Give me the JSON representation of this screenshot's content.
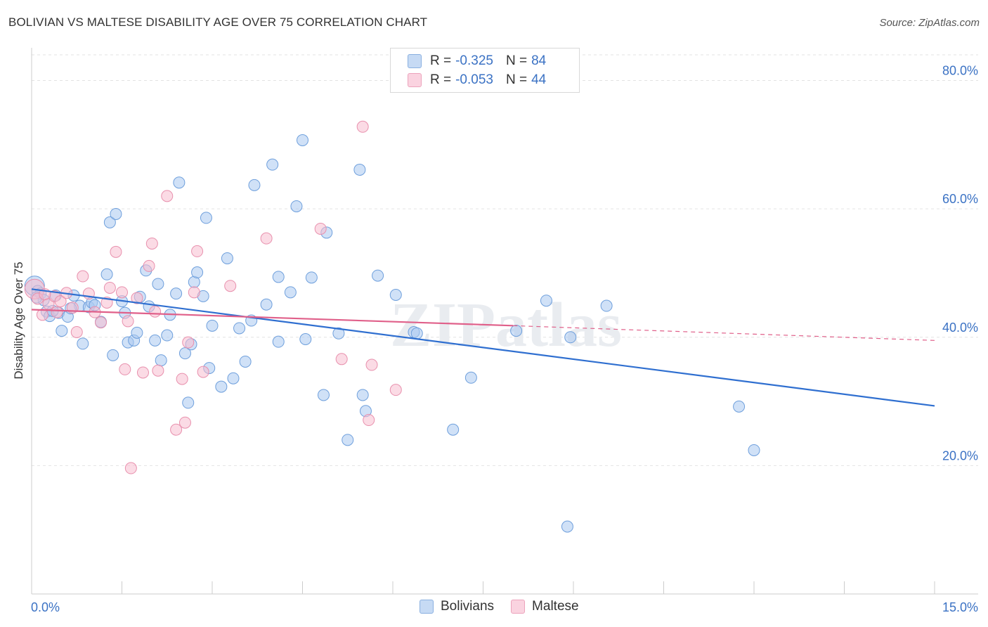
{
  "title": "BOLIVIAN VS MALTESE DISABILITY AGE OVER 75 CORRELATION CHART",
  "source": "Source: ZipAtlas.com",
  "watermark": "ZIPatlas",
  "legend": {
    "rows": [
      {
        "r_label": "R =",
        "r_value": "-0.325",
        "n_label": "N =",
        "n_value": "84",
        "color": "#a9c8f0"
      },
      {
        "r_label": "R =",
        "r_value": "-0.053",
        "n_label": "N =",
        "n_value": "44",
        "color": "#f7bed0"
      }
    ]
  },
  "bottom_legend": {
    "items": [
      {
        "label": "Bolivians",
        "color": "#a9c8f0"
      },
      {
        "label": "Maltese",
        "color": "#f7bed0"
      }
    ]
  },
  "chart_data": {
    "type": "scatter",
    "title": "BOLIVIAN VS MALTESE DISABILITY AGE OVER 75 CORRELATION CHART",
    "xlabel": "",
    "ylabel": "Disability Age Over 75",
    "xlim": [
      0,
      15
    ],
    "ylim": [
      0,
      84
    ],
    "x_tick_labels": [
      "0.0%",
      "15.0%"
    ],
    "y_tick_labels": [
      "20.0%",
      "40.0%",
      "60.0%",
      "80.0%"
    ],
    "y_ticks": [
      20,
      40,
      60,
      80
    ],
    "grid": true,
    "series": [
      {
        "name": "Bolivians",
        "color": "#a9c8f0",
        "stroke": "#6e9fdc",
        "trend": {
          "x": [
            0.0,
            15.0
          ],
          "y": [
            47.5,
            29.3
          ],
          "color": "#2f6fd0"
        },
        "points": [
          [
            0.05,
            48.0
          ],
          [
            0.1,
            47.2
          ],
          [
            0.15,
            46.8
          ],
          [
            0.2,
            45.8
          ],
          [
            0.25,
            44.0
          ],
          [
            0.3,
            43.3
          ],
          [
            0.4,
            46.5
          ],
          [
            0.45,
            43.8
          ],
          [
            0.5,
            41.0
          ],
          [
            0.6,
            43.2
          ],
          [
            0.7,
            46.5
          ],
          [
            0.8,
            44.9
          ],
          [
            0.85,
            39.0
          ],
          [
            0.95,
            44.7
          ],
          [
            1.0,
            45.4
          ],
          [
            1.15,
            42.4
          ],
          [
            1.25,
            49.8
          ],
          [
            1.3,
            57.9
          ],
          [
            1.35,
            37.2
          ],
          [
            1.4,
            59.2
          ],
          [
            1.5,
            45.6
          ],
          [
            1.55,
            43.8
          ],
          [
            1.6,
            39.2
          ],
          [
            1.7,
            39.5
          ],
          [
            1.75,
            40.7
          ],
          [
            1.8,
            46.3
          ],
          [
            1.9,
            50.4
          ],
          [
            1.95,
            44.8
          ],
          [
            2.05,
            39.5
          ],
          [
            2.1,
            48.3
          ],
          [
            2.15,
            36.4
          ],
          [
            2.25,
            40.3
          ],
          [
            2.3,
            43.5
          ],
          [
            2.4,
            46.8
          ],
          [
            2.45,
            64.1
          ],
          [
            2.55,
            37.5
          ],
          [
            2.6,
            29.8
          ],
          [
            2.65,
            38.9
          ],
          [
            2.7,
            48.6
          ],
          [
            2.75,
            50.1
          ],
          [
            2.85,
            46.4
          ],
          [
            2.9,
            58.6
          ],
          [
            2.95,
            35.2
          ],
          [
            3.0,
            41.8
          ],
          [
            3.15,
            32.3
          ],
          [
            3.25,
            52.3
          ],
          [
            3.35,
            33.6
          ],
          [
            3.45,
            41.4
          ],
          [
            3.55,
            36.2
          ],
          [
            3.65,
            42.6
          ],
          [
            3.7,
            63.7
          ],
          [
            3.9,
            45.1
          ],
          [
            4.0,
            66.9
          ],
          [
            4.1,
            39.3
          ],
          [
            4.1,
            49.4
          ],
          [
            4.3,
            47.0
          ],
          [
            4.4,
            60.4
          ],
          [
            4.5,
            70.7
          ],
          [
            4.55,
            39.7
          ],
          [
            4.65,
            49.3
          ],
          [
            4.85,
            31.0
          ],
          [
            4.9,
            56.3
          ],
          [
            5.1,
            40.6
          ],
          [
            5.25,
            24.0
          ],
          [
            5.45,
            66.1
          ],
          [
            5.5,
            31.0
          ],
          [
            5.55,
            28.5
          ],
          [
            5.75,
            49.6
          ],
          [
            6.05,
            46.6
          ],
          [
            6.35,
            40.8
          ],
          [
            6.4,
            40.6
          ],
          [
            7.0,
            25.6
          ],
          [
            7.3,
            33.7
          ],
          [
            8.05,
            41.0
          ],
          [
            8.55,
            45.7
          ],
          [
            8.9,
            10.5
          ],
          [
            8.95,
            40.0
          ],
          [
            9.55,
            44.9
          ],
          [
            11.75,
            29.2
          ],
          [
            12.0,
            22.4
          ],
          [
            0.08,
            46.2
          ],
          [
            0.35,
            44.1
          ],
          [
            1.05,
            45.0
          ],
          [
            0.65,
            44.5
          ]
        ]
      },
      {
        "name": "Maltese",
        "color": "#f7bed0",
        "stroke": "#e890ad",
        "trend": {
          "x": [
            0.0,
            8.0
          ],
          "y": [
            44.3,
            41.8
          ],
          "dashed_to": [
            15.0,
            39.5
          ],
          "color": "#e0608a"
        },
        "points": [
          [
            0.05,
            47.5
          ],
          [
            0.1,
            46.0
          ],
          [
            0.18,
            43.5
          ],
          [
            0.28,
            45.2
          ],
          [
            0.38,
            46.4
          ],
          [
            0.48,
            45.6
          ],
          [
            0.58,
            46.9
          ],
          [
            0.68,
            44.6
          ],
          [
            0.75,
            40.8
          ],
          [
            0.85,
            49.5
          ],
          [
            0.95,
            46.8
          ],
          [
            1.05,
            43.9
          ],
          [
            1.15,
            42.3
          ],
          [
            1.25,
            45.4
          ],
          [
            1.3,
            47.7
          ],
          [
            1.4,
            53.3
          ],
          [
            1.5,
            47.0
          ],
          [
            1.55,
            35.0
          ],
          [
            1.6,
            42.5
          ],
          [
            1.65,
            19.6
          ],
          [
            1.75,
            46.1
          ],
          [
            1.85,
            34.5
          ],
          [
            1.95,
            51.1
          ],
          [
            2.0,
            54.6
          ],
          [
            2.05,
            44.0
          ],
          [
            2.1,
            34.8
          ],
          [
            2.25,
            62.0
          ],
          [
            2.4,
            25.6
          ],
          [
            2.5,
            33.5
          ],
          [
            2.55,
            26.7
          ],
          [
            2.6,
            39.2
          ],
          [
            2.7,
            47.0
          ],
          [
            2.75,
            53.4
          ],
          [
            2.85,
            34.6
          ],
          [
            3.3,
            48.0
          ],
          [
            3.9,
            55.4
          ],
          [
            4.8,
            56.9
          ],
          [
            5.15,
            36.6
          ],
          [
            5.5,
            72.8
          ],
          [
            5.6,
            27.1
          ],
          [
            5.65,
            35.7
          ],
          [
            6.05,
            31.8
          ],
          [
            0.42,
            43.9
          ],
          [
            0.22,
            46.7
          ]
        ]
      }
    ]
  }
}
